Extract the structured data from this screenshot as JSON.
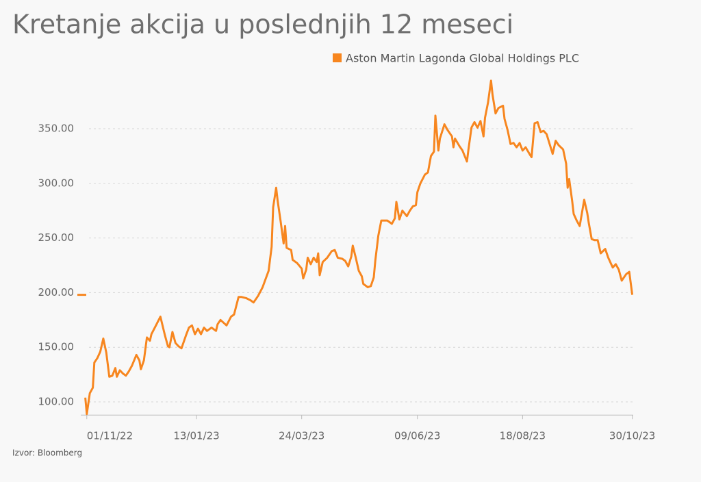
{
  "chart_data": {
    "type": "line",
    "title": "Kretanje akcija u poslednjih 12 meseci",
    "source": "Izvor: Bloomberg",
    "xlim": [
      "2022-10-28",
      "2023-11-01"
    ],
    "xticks": [
      {
        "value": "2022-11-01",
        "label": "01/11/22"
      },
      {
        "value": "2023-01-13",
        "label": "13/01/23"
      },
      {
        "value": "2023-03-24",
        "label": "24/03/23"
      },
      {
        "value": "2023-06-09",
        "label": "09/06/23"
      },
      {
        "value": "2023-08-18",
        "label": "18/08/23"
      },
      {
        "value": "2023-10-30",
        "label": "30/10/23"
      }
    ],
    "ylim": [
      88,
      400
    ],
    "yticks": [
      {
        "value": 100,
        "label": "100.00"
      },
      {
        "value": 150,
        "label": "150.00"
      },
      {
        "value": 200,
        "label": "200.00"
      },
      {
        "value": 250,
        "label": "250.00"
      },
      {
        "value": 300,
        "label": "300.00"
      },
      {
        "value": 350,
        "label": "350.00"
      }
    ],
    "grid": true,
    "x": [
      "2022-10-31",
      "2022-11-01",
      "2022-11-03",
      "2022-11-05",
      "2022-11-06",
      "2022-11-08",
      "2022-11-10",
      "2022-11-12",
      "2022-11-14",
      "2022-11-16",
      "2022-11-18",
      "2022-11-20",
      "2022-11-21",
      "2022-11-23",
      "2022-11-25",
      "2022-11-27",
      "2022-11-29",
      "2022-12-01",
      "2022-12-04",
      "2022-12-06",
      "2022-12-07",
      "2022-12-09",
      "2022-12-11",
      "2022-12-13",
      "2022-12-14",
      "2022-12-17",
      "2022-12-20",
      "2022-12-23",
      "2022-12-25",
      "2022-12-26",
      "2022-12-28",
      "2022-12-30",
      "2023-01-01",
      "2023-01-03",
      "2023-01-06",
      "2023-01-08",
      "2023-01-10",
      "2023-01-12",
      "2023-01-14",
      "2023-01-16",
      "2023-01-18",
      "2023-01-20",
      "2023-01-23",
      "2023-01-26",
      "2023-01-27",
      "2023-01-29",
      "2023-02-02",
      "2023-02-05",
      "2023-02-07",
      "2023-02-10",
      "2023-02-12",
      "2023-02-15",
      "2023-02-18",
      "2023-02-20",
      "2023-02-23",
      "2023-02-26",
      "2023-03-02",
      "2023-03-04",
      "2023-03-05",
      "2023-03-07",
      "2023-03-08",
      "2023-03-10",
      "2023-03-12",
      "2023-03-13",
      "2023-03-14",
      "2023-03-17",
      "2023-03-18",
      "2023-03-21",
      "2023-03-24",
      "2023-03-25",
      "2023-03-27",
      "2023-03-28",
      "2023-03-30",
      "2023-04-01",
      "2023-04-03",
      "2023-04-04",
      "2023-04-05",
      "2023-04-07",
      "2023-04-10",
      "2023-04-13",
      "2023-04-15",
      "2023-04-17",
      "2023-04-20",
      "2023-04-22",
      "2023-04-24",
      "2023-04-26",
      "2023-04-27",
      "2023-04-29",
      "2023-05-01",
      "2023-05-03",
      "2023-05-04",
      "2023-05-07",
      "2023-05-09",
      "2023-05-11",
      "2023-05-12",
      "2023-05-14",
      "2023-05-16",
      "2023-05-18",
      "2023-05-20",
      "2023-05-23",
      "2023-05-25",
      "2023-05-26",
      "2023-05-28",
      "2023-05-30",
      "2023-06-02",
      "2023-06-04",
      "2023-06-06",
      "2023-06-08",
      "2023-06-09",
      "2023-06-11",
      "2023-06-14",
      "2023-06-16",
      "2023-06-18",
      "2023-06-20",
      "2023-06-21",
      "2023-06-23",
      "2023-06-24",
      "2023-06-27",
      "2023-06-29",
      "2023-07-02",
      "2023-07-03",
      "2023-07-04",
      "2023-07-07",
      "2023-07-09",
      "2023-07-12",
      "2023-07-13",
      "2023-07-15",
      "2023-07-17",
      "2023-07-19",
      "2023-07-21",
      "2023-07-23",
      "2023-07-24",
      "2023-07-26",
      "2023-07-28",
      "2023-07-29",
      "2023-07-31",
      "2023-08-02",
      "2023-08-05",
      "2023-08-06",
      "2023-08-08",
      "2023-08-10",
      "2023-08-12",
      "2023-08-14",
      "2023-08-16",
      "2023-08-18",
      "2023-08-20",
      "2023-08-23",
      "2023-08-24",
      "2023-08-26",
      "2023-08-28",
      "2023-08-30",
      "2023-09-01",
      "2023-09-03",
      "2023-09-05",
      "2023-09-07",
      "2023-09-09",
      "2023-09-11",
      "2023-09-14",
      "2023-09-16",
      "2023-09-17",
      "2023-09-18",
      "2023-09-20",
      "2023-09-21",
      "2023-09-23",
      "2023-09-25",
      "2023-09-28",
      "2023-09-30",
      "2023-10-01",
      "2023-10-03",
      "2023-10-05",
      "2023-10-07",
      "2023-10-09",
      "2023-10-12",
      "2023-10-14",
      "2023-10-17",
      "2023-10-19",
      "2023-10-21",
      "2023-10-23",
      "2023-10-26",
      "2023-10-28",
      "2023-10-30"
    ],
    "series": [
      {
        "name": "Aston Martin Lagonda Global Holdings PLC",
        "color": "#f7861f",
        "values": [
          104,
          89,
          108,
          113,
          136,
          140,
          146,
          158,
          145,
          123,
          124,
          131,
          123,
          129,
          126,
          124,
          128,
          133,
          143,
          138,
          130,
          138,
          159,
          156,
          162,
          170,
          178,
          161,
          151,
          150,
          164,
          154,
          151,
          149,
          161,
          168,
          170,
          162,
          167,
          162,
          168,
          165,
          168,
          165,
          171,
          175,
          170,
          178,
          180,
          196,
          196,
          195,
          193,
          191,
          197,
          205,
          220,
          242,
          278,
          296,
          284,
          265,
          245,
          261,
          241,
          239,
          230,
          227,
          222,
          213,
          221,
          232,
          226,
          232,
          228,
          236,
          216,
          228,
          232,
          238,
          239,
          232,
          231,
          229,
          224,
          233,
          243,
          232,
          220,
          215,
          208,
          205,
          206,
          214,
          229,
          252,
          266,
          266,
          266,
          263,
          268,
          283,
          267,
          275,
          270,
          275,
          279,
          280,
          292,
          300,
          308,
          310,
          325,
          329,
          362,
          330,
          341,
          354,
          349,
          343,
          333,
          341,
          334,
          330,
          320,
          331,
          351,
          356,
          351,
          357,
          343,
          360,
          374,
          394,
          381,
          364,
          369,
          371,
          359,
          349,
          336,
          337,
          333,
          337,
          330,
          333,
          326,
          324,
          355,
          356,
          347,
          348,
          345,
          336,
          327,
          339,
          335,
          331,
          318,
          296,
          304,
          284,
          272,
          266,
          261,
          285,
          273,
          264,
          249,
          248,
          248,
          236,
          240,
          232,
          223,
          226,
          221,
          211,
          217,
          219,
          198
        ]
      }
    ]
  }
}
